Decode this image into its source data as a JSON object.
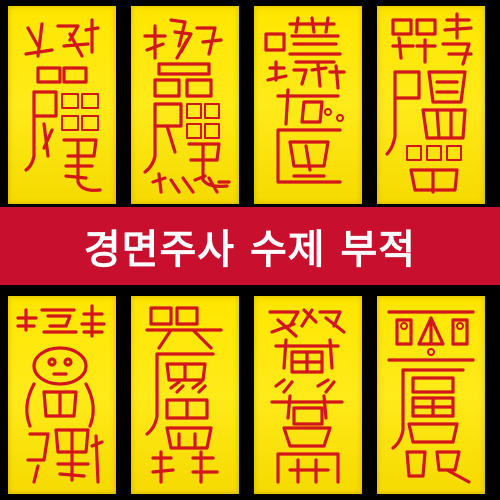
{
  "banner": {
    "title": "경면주사 수제 부적",
    "background_color": "#c8102e",
    "text_color": "#ffffff"
  },
  "colors": {
    "page_background": "#000000",
    "paper": "#ffe600",
    "ink": "#d2161c"
  }
}
